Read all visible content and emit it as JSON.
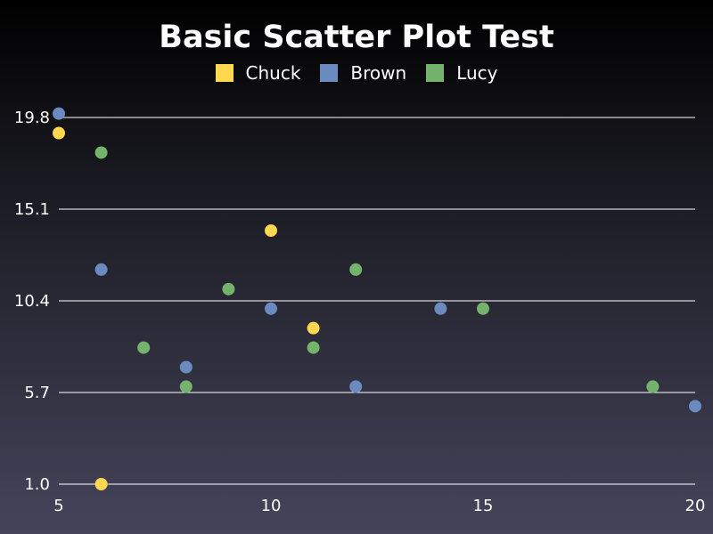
{
  "chart_data": {
    "type": "scatter",
    "title": "Basic Scatter Plot Test",
    "xlabel": "",
    "ylabel": "",
    "xlim": [
      5,
      20
    ],
    "ylim": [
      1.0,
      19.8
    ],
    "x_ticks": [
      "5",
      "10",
      "15",
      "20"
    ],
    "y_ticks": [
      "1.0",
      "5.7",
      "10.4",
      "15.1",
      "19.8"
    ],
    "grid": "horizontal",
    "legend": "top-center",
    "series": [
      {
        "name": "Chuck",
        "color": "#ffd84f",
        "points": [
          [
            5,
            19.0
          ],
          [
            6,
            1.0
          ],
          [
            10,
            14.0
          ],
          [
            11,
            9.0
          ]
        ]
      },
      {
        "name": "Brown",
        "color": "#6b8bc0",
        "points": [
          [
            5,
            20.0
          ],
          [
            6,
            12.0
          ],
          [
            8,
            7.0
          ],
          [
            10,
            10.0
          ],
          [
            12,
            6.0
          ],
          [
            14,
            10.0
          ],
          [
            20,
            5.0
          ]
        ]
      },
      {
        "name": "Lucy",
        "color": "#73b36b",
        "points": [
          [
            6,
            18.0
          ],
          [
            7,
            8.0
          ],
          [
            8,
            6.0
          ],
          [
            9,
            11.0
          ],
          [
            11,
            8.0
          ],
          [
            12,
            12.0
          ],
          [
            15,
            10.0
          ],
          [
            19,
            6.0
          ]
        ]
      }
    ]
  }
}
